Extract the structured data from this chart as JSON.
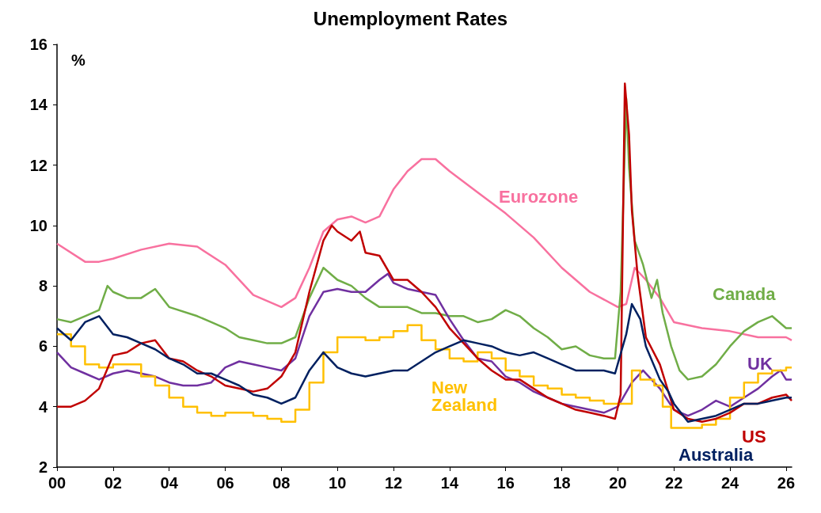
{
  "chart_data": {
    "type": "line",
    "title": "Unemployment Rates",
    "ylabel": "%",
    "xlim": [
      2000,
      2026.2
    ],
    "xticks": [
      {
        "value": 2000,
        "label": "00"
      },
      {
        "value": 2002,
        "label": "02"
      },
      {
        "value": 2004,
        "label": "04"
      },
      {
        "value": 2006,
        "label": "06"
      },
      {
        "value": 2008,
        "label": "08"
      },
      {
        "value": 2010,
        "label": "10"
      },
      {
        "value": 2012,
        "label": "12"
      },
      {
        "value": 2014,
        "label": "14"
      },
      {
        "value": 2016,
        "label": "16"
      },
      {
        "value": 2018,
        "label": "18"
      },
      {
        "value": 2020,
        "label": "20"
      },
      {
        "value": 2022,
        "label": "22"
      },
      {
        "value": 2024,
        "label": "24"
      },
      {
        "value": 2026,
        "label": "26"
      }
    ],
    "ylim": [
      2,
      16
    ],
    "yticks": [
      2,
      4,
      6,
      8,
      10,
      12,
      14,
      16
    ],
    "grid": false,
    "legend": false,
    "series": [
      {
        "name": "Eurozone",
        "color": "#f8719f",
        "x": [
          2000,
          2001,
          2001.5,
          2002,
          2003,
          2004,
          2005,
          2006,
          2007,
          2008,
          2008.5,
          2009,
          2009.5,
          2010,
          2010.5,
          2011,
          2011.5,
          2012,
          2012.5,
          2013,
          2013.5,
          2014,
          2015,
          2016,
          2017,
          2018,
          2019,
          2020,
          2020.3,
          2020.6,
          2021,
          2021.5,
          2022,
          2023,
          2024,
          2025,
          2026,
          2026.2
        ],
        "values": [
          9.4,
          8.8,
          8.8,
          8.9,
          9.2,
          9.4,
          9.3,
          8.7,
          7.7,
          7.3,
          7.6,
          8.6,
          9.8,
          10.2,
          10.3,
          10.1,
          10.3,
          11.2,
          11.8,
          12.2,
          12.2,
          11.8,
          11.1,
          10.4,
          9.6,
          8.6,
          7.8,
          7.3,
          7.4,
          8.6,
          8.2,
          7.6,
          6.8,
          6.6,
          6.5,
          6.3,
          6.3,
          6.2
        ]
      },
      {
        "name": "Canada",
        "color": "#70ad47",
        "x": [
          2000,
          2000.5,
          2001,
          2001.5,
          2001.8,
          2002,
          2002.5,
          2003,
          2003.5,
          2004,
          2005,
          2005.5,
          2006,
          2006.5,
          2007,
          2007.5,
          2008,
          2008.5,
          2009,
          2009.5,
          2010,
          2010.5,
          2011,
          2011.5,
          2012,
          2012.5,
          2013,
          2013.5,
          2014,
          2014.5,
          2015,
          2015.5,
          2016,
          2016.5,
          2017,
          2017.5,
          2018,
          2018.5,
          2019,
          2019.5,
          2019.9,
          2020.1,
          2020.3,
          2020.4,
          2020.6,
          2020.9,
          2021.2,
          2021.4,
          2021.6,
          2021.9,
          2022.2,
          2022.5,
          2023,
          2023.5,
          2024,
          2024.5,
          2025,
          2025.5,
          2026,
          2026.2
        ],
        "values": [
          6.9,
          6.8,
          7.0,
          7.2,
          8.0,
          7.8,
          7.6,
          7.6,
          7.9,
          7.3,
          7.0,
          6.8,
          6.6,
          6.3,
          6.2,
          6.1,
          6.1,
          6.3,
          7.6,
          8.6,
          8.2,
          8.0,
          7.6,
          7.3,
          7.3,
          7.3,
          7.1,
          7.1,
          7.0,
          7.0,
          6.8,
          6.9,
          7.2,
          7.0,
          6.6,
          6.3,
          5.9,
          6.0,
          5.7,
          5.6,
          5.6,
          7.8,
          14.2,
          11.9,
          9.5,
          8.7,
          7.6,
          8.2,
          7.1,
          6.0,
          5.2,
          4.9,
          5.0,
          5.4,
          6.0,
          6.5,
          6.8,
          7.0,
          6.6,
          6.6
        ]
      },
      {
        "name": "UK",
        "color": "#7030a0",
        "x": [
          2000,
          2000.5,
          2001,
          2001.5,
          2002,
          2002.5,
          2003,
          2003.5,
          2004,
          2004.5,
          2005,
          2005.5,
          2006,
          2006.5,
          2007,
          2007.5,
          2008,
          2008.5,
          2009,
          2009.5,
          2010,
          2010.5,
          2011,
          2011.5,
          2011.8,
          2012,
          2012.5,
          2013,
          2013.5,
          2014,
          2014.5,
          2015,
          2015.5,
          2016,
          2016.5,
          2017,
          2017.5,
          2018,
          2018.5,
          2019,
          2019.5,
          2020,
          2020.5,
          2020.9,
          2021.2,
          2021.5,
          2022,
          2022.5,
          2023,
          2023.5,
          2024,
          2024.5,
          2025,
          2025.5,
          2025.8,
          2026,
          2026.2
        ],
        "values": [
          5.8,
          5.3,
          5.1,
          4.9,
          5.1,
          5.2,
          5.1,
          5.0,
          4.8,
          4.7,
          4.7,
          4.8,
          5.3,
          5.5,
          5.4,
          5.3,
          5.2,
          5.6,
          7.0,
          7.8,
          7.9,
          7.8,
          7.8,
          8.2,
          8.4,
          8.1,
          7.9,
          7.8,
          7.7,
          6.9,
          6.2,
          5.6,
          5.5,
          5.0,
          4.8,
          4.5,
          4.3,
          4.1,
          4.0,
          3.9,
          3.8,
          4.0,
          4.8,
          5.2,
          4.9,
          4.6,
          3.9,
          3.7,
          3.9,
          4.2,
          4.0,
          4.3,
          4.6,
          5.0,
          5.2,
          4.9,
          4.9
        ]
      },
      {
        "name": "New Zealand",
        "type": "step",
        "color": "#ffc000",
        "x": [
          2000,
          2000.5,
          2001,
          2001.5,
          2002,
          2002.5,
          2003,
          2003.5,
          2004,
          2004.5,
          2005,
          2005.5,
          2006,
          2006.5,
          2007,
          2007.5,
          2008,
          2008.5,
          2009,
          2009.5,
          2010,
          2010.5,
          2011,
          2011.5,
          2012,
          2012.5,
          2013,
          2013.5,
          2014,
          2014.5,
          2015,
          2015.5,
          2016,
          2016.5,
          2017,
          2017.5,
          2018,
          2018.5,
          2019,
          2019.5,
          2020,
          2020.3,
          2020.5,
          2020.8,
          2021.3,
          2021.6,
          2021.9,
          2022.3,
          2023,
          2023.5,
          2024,
          2024.5,
          2025,
          2025.5,
          2026,
          2026.2
        ],
        "values": [
          6.4,
          6.0,
          5.4,
          5.3,
          5.4,
          5.4,
          5.0,
          4.7,
          4.3,
          4.0,
          3.8,
          3.7,
          3.8,
          3.8,
          3.7,
          3.6,
          3.5,
          3.9,
          4.8,
          5.8,
          6.3,
          6.3,
          6.2,
          6.3,
          6.5,
          6.7,
          6.2,
          5.9,
          5.6,
          5.5,
          5.8,
          5.6,
          5.2,
          5.0,
          4.7,
          4.6,
          4.4,
          4.3,
          4.2,
          4.1,
          4.1,
          4.1,
          5.2,
          4.9,
          4.7,
          4.0,
          3.3,
          3.3,
          3.4,
          3.6,
          4.3,
          4.8,
          5.1,
          5.2,
          5.3,
          5.3
        ]
      },
      {
        "name": "US",
        "color": "#c00000",
        "x": [
          2000,
          2000.5,
          2001,
          2001.5,
          2002,
          2002.5,
          2003,
          2003.5,
          2004,
          2004.5,
          2005,
          2005.5,
          2006,
          2006.5,
          2007,
          2007.5,
          2008,
          2008.5,
          2009,
          2009.5,
          2009.8,
          2010,
          2010.5,
          2010.8,
          2011,
          2011.5,
          2012,
          2012.5,
          2013,
          2013.5,
          2014,
          2014.5,
          2015,
          2015.5,
          2016,
          2016.5,
          2017,
          2017.5,
          2018,
          2018.5,
          2019,
          2019.5,
          2019.9,
          2020.1,
          2020.25,
          2020.4,
          2020.5,
          2020.7,
          2021,
          2021.5,
          2022,
          2022.5,
          2023,
          2023.5,
          2024,
          2024.5,
          2025,
          2025.5,
          2026,
          2026.2
        ],
        "values": [
          4.0,
          4.0,
          4.2,
          4.6,
          5.7,
          5.8,
          6.1,
          6.2,
          5.6,
          5.5,
          5.2,
          5.0,
          4.7,
          4.6,
          4.5,
          4.6,
          5.0,
          5.8,
          7.8,
          9.5,
          10.0,
          9.8,
          9.5,
          9.8,
          9.1,
          9.0,
          8.2,
          8.2,
          7.8,
          7.3,
          6.6,
          6.1,
          5.6,
          5.2,
          4.9,
          4.9,
          4.6,
          4.3,
          4.1,
          3.9,
          3.8,
          3.7,
          3.6,
          4.4,
          14.7,
          13.0,
          10.5,
          8.4,
          6.3,
          5.4,
          3.9,
          3.6,
          3.5,
          3.6,
          3.8,
          4.1,
          4.1,
          4.3,
          4.4,
          4.2
        ]
      },
      {
        "name": "Australia",
        "color": "#002060",
        "x": [
          2000,
          2000.5,
          2001,
          2001.5,
          2002,
          2002.5,
          2003,
          2003.5,
          2004,
          2004.5,
          2005,
          2005.5,
          2006,
          2006.5,
          2007,
          2007.5,
          2008,
          2008.5,
          2009,
          2009.5,
          2010,
          2010.5,
          2011,
          2011.5,
          2012,
          2012.5,
          2013,
          2013.5,
          2014,
          2014.5,
          2015,
          2015.5,
          2016,
          2016.5,
          2017,
          2017.5,
          2018,
          2018.5,
          2019,
          2019.5,
          2019.9,
          2020.3,
          2020.5,
          2020.8,
          2021,
          2021.5,
          2021.8,
          2022,
          2022.5,
          2023,
          2023.5,
          2024,
          2024.5,
          2025,
          2025.5,
          2026,
          2026.2
        ],
        "values": [
          6.6,
          6.2,
          6.8,
          7.0,
          6.4,
          6.3,
          6.1,
          5.9,
          5.6,
          5.4,
          5.1,
          5.1,
          4.9,
          4.7,
          4.4,
          4.3,
          4.1,
          4.3,
          5.2,
          5.8,
          5.3,
          5.1,
          5.0,
          5.1,
          5.2,
          5.2,
          5.5,
          5.8,
          6.0,
          6.2,
          6.1,
          6.0,
          5.8,
          5.7,
          5.8,
          5.6,
          5.4,
          5.2,
          5.2,
          5.2,
          5.1,
          6.4,
          7.4,
          6.9,
          6.0,
          4.9,
          4.5,
          4.1,
          3.5,
          3.6,
          3.7,
          3.9,
          4.1,
          4.1,
          4.2,
          4.3,
          4.3
        ]
      }
    ]
  }
}
